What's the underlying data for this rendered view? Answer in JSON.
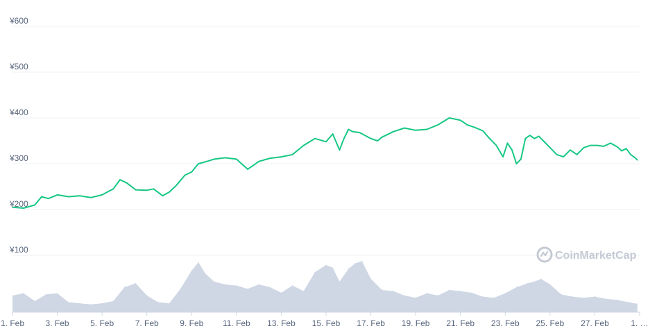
{
  "chart_data": {
    "type": "line",
    "title": "",
    "xlabel": "",
    "ylabel": "",
    "ylim": [
      0,
      600
    ],
    "grid": true,
    "y_ticks": [
      "¥100",
      "¥200",
      "¥300",
      "¥400",
      "¥500",
      "¥600"
    ],
    "x_ticks": [
      "1. Feb",
      "3. Feb",
      "5. Feb",
      "7. Feb",
      "9. Feb",
      "11. Feb",
      "13. Feb",
      "15. Feb",
      "17. Feb",
      "19. Feb",
      "21. Feb",
      "23. Feb",
      "25. Feb",
      "27. Feb",
      "1. …"
    ],
    "price_series": {
      "color": "#16c784",
      "x": [
        1,
        1.5,
        2,
        2.3,
        2.6,
        3,
        3.5,
        4,
        4.5,
        5,
        5.5,
        5.8,
        6.1,
        6.5,
        7,
        7.3,
        7.7,
        8,
        8.3,
        8.7,
        9,
        9.3,
        9.6,
        10,
        10.5,
        11,
        11.5,
        11.8,
        12,
        12.5,
        13,
        13.5,
        14,
        14.5,
        15,
        15.3,
        15.6,
        15.8,
        16,
        16.2,
        16.5,
        17,
        17.3,
        17.5,
        18,
        18.5,
        19,
        19.5,
        20,
        20.5,
        21,
        21.3,
        21.6,
        22,
        22.3,
        22.6,
        22.9,
        23.1,
        23.3,
        23.5,
        23.7,
        23.9,
        24.1,
        24.3,
        24.5,
        24.7,
        25,
        25.3,
        25.6,
        25.9,
        26.2,
        26.5,
        26.8,
        27.1,
        27.4,
        27.7,
        28,
        28.2,
        28.4,
        28.6,
        28.8,
        28.9
      ],
      "y": [
        205,
        203,
        210,
        228,
        224,
        232,
        228,
        230,
        226,
        232,
        245,
        265,
        258,
        243,
        242,
        245,
        230,
        238,
        252,
        275,
        282,
        300,
        304,
        310,
        313,
        310,
        288,
        298,
        305,
        312,
        315,
        320,
        340,
        355,
        348,
        365,
        330,
        355,
        375,
        370,
        368,
        355,
        350,
        358,
        370,
        378,
        373,
        375,
        385,
        400,
        395,
        385,
        380,
        372,
        355,
        340,
        315,
        345,
        330,
        300,
        310,
        355,
        362,
        355,
        360,
        350,
        335,
        320,
        315,
        330,
        320,
        335,
        340,
        340,
        338,
        345,
        337,
        328,
        333,
        320,
        313,
        308
      ]
    },
    "volume_series": {
      "color": "#cfd6e4",
      "x": [
        1,
        1.5,
        2,
        2.5,
        3,
        3.5,
        4,
        4.5,
        5,
        5.5,
        6,
        6.5,
        7,
        7.5,
        8,
        8.5,
        9,
        9.3,
        9.6,
        10,
        10.5,
        11,
        11.5,
        12,
        12.5,
        13,
        13.5,
        14,
        14.5,
        15,
        15.3,
        15.6,
        16,
        16.3,
        16.6,
        17,
        17.5,
        18,
        18.5,
        19,
        19.5,
        20,
        20.5,
        21,
        21.5,
        22,
        22.5,
        23,
        23.5,
        24,
        24.3,
        24.6,
        25,
        25.5,
        26,
        26.5,
        27,
        27.5,
        28,
        28.5,
        28.9
      ],
      "y": [
        0.3,
        0.34,
        0.2,
        0.32,
        0.34,
        0.18,
        0.16,
        0.14,
        0.16,
        0.2,
        0.45,
        0.52,
        0.3,
        0.18,
        0.16,
        0.42,
        0.75,
        0.9,
        0.7,
        0.55,
        0.5,
        0.48,
        0.42,
        0.5,
        0.45,
        0.35,
        0.48,
        0.38,
        0.72,
        0.85,
        0.8,
        0.55,
        0.78,
        0.88,
        0.92,
        0.6,
        0.4,
        0.38,
        0.3,
        0.26,
        0.34,
        0.3,
        0.4,
        0.38,
        0.35,
        0.28,
        0.26,
        0.34,
        0.45,
        0.52,
        0.55,
        0.6,
        0.5,
        0.32,
        0.28,
        0.26,
        0.28,
        0.24,
        0.22,
        0.18,
        0.15
      ]
    }
  },
  "watermark": {
    "text": "CoinMarketCap",
    "icon": "coinmarketcap-logo-icon"
  }
}
